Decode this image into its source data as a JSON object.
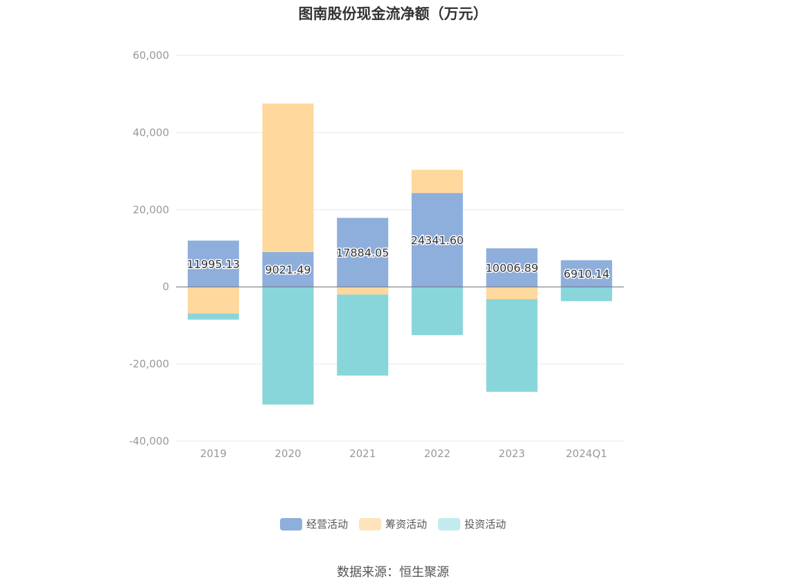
{
  "chart_data": {
    "type": "bar",
    "stacked": true,
    "title": "图南股份现金流净额（万元）",
    "categories": [
      "2019",
      "2020",
      "2021",
      "2022",
      "2023",
      "2024Q1"
    ],
    "series": [
      {
        "name": "经营活动",
        "color": "#8eaedc",
        "values": [
          11995.13,
          9021.49,
          17884.05,
          24341.6,
          10006.89,
          6910.14
        ],
        "labels": [
          "11995.13",
          "9021.49",
          "17884.05",
          "24341.60",
          "10006.89",
          "6910.14"
        ]
      },
      {
        "name": "筹资活动",
        "color": "#fed89c",
        "values": [
          -6900,
          38500,
          -2000,
          6000,
          -3200,
          0
        ]
      },
      {
        "name": "投资活动",
        "color": "#88d6da",
        "values": [
          -1600,
          -30500,
          -21000,
          -12500,
          -24000,
          -3700
        ]
      }
    ],
    "yaxis": {
      "min": -40000,
      "max": 60000,
      "ticks": [
        "60,000",
        "40,000",
        "20,000",
        "0",
        "-20,000",
        "-40,000"
      ],
      "tick_values": [
        60000,
        40000,
        20000,
        0,
        -20000,
        -40000
      ]
    },
    "grid": true,
    "legend_position": "bottom",
    "legend_colors": [
      "#8eaedc",
      "#fee3bd",
      "#c3ebee"
    ]
  },
  "source": "数据来源：恒生聚源"
}
